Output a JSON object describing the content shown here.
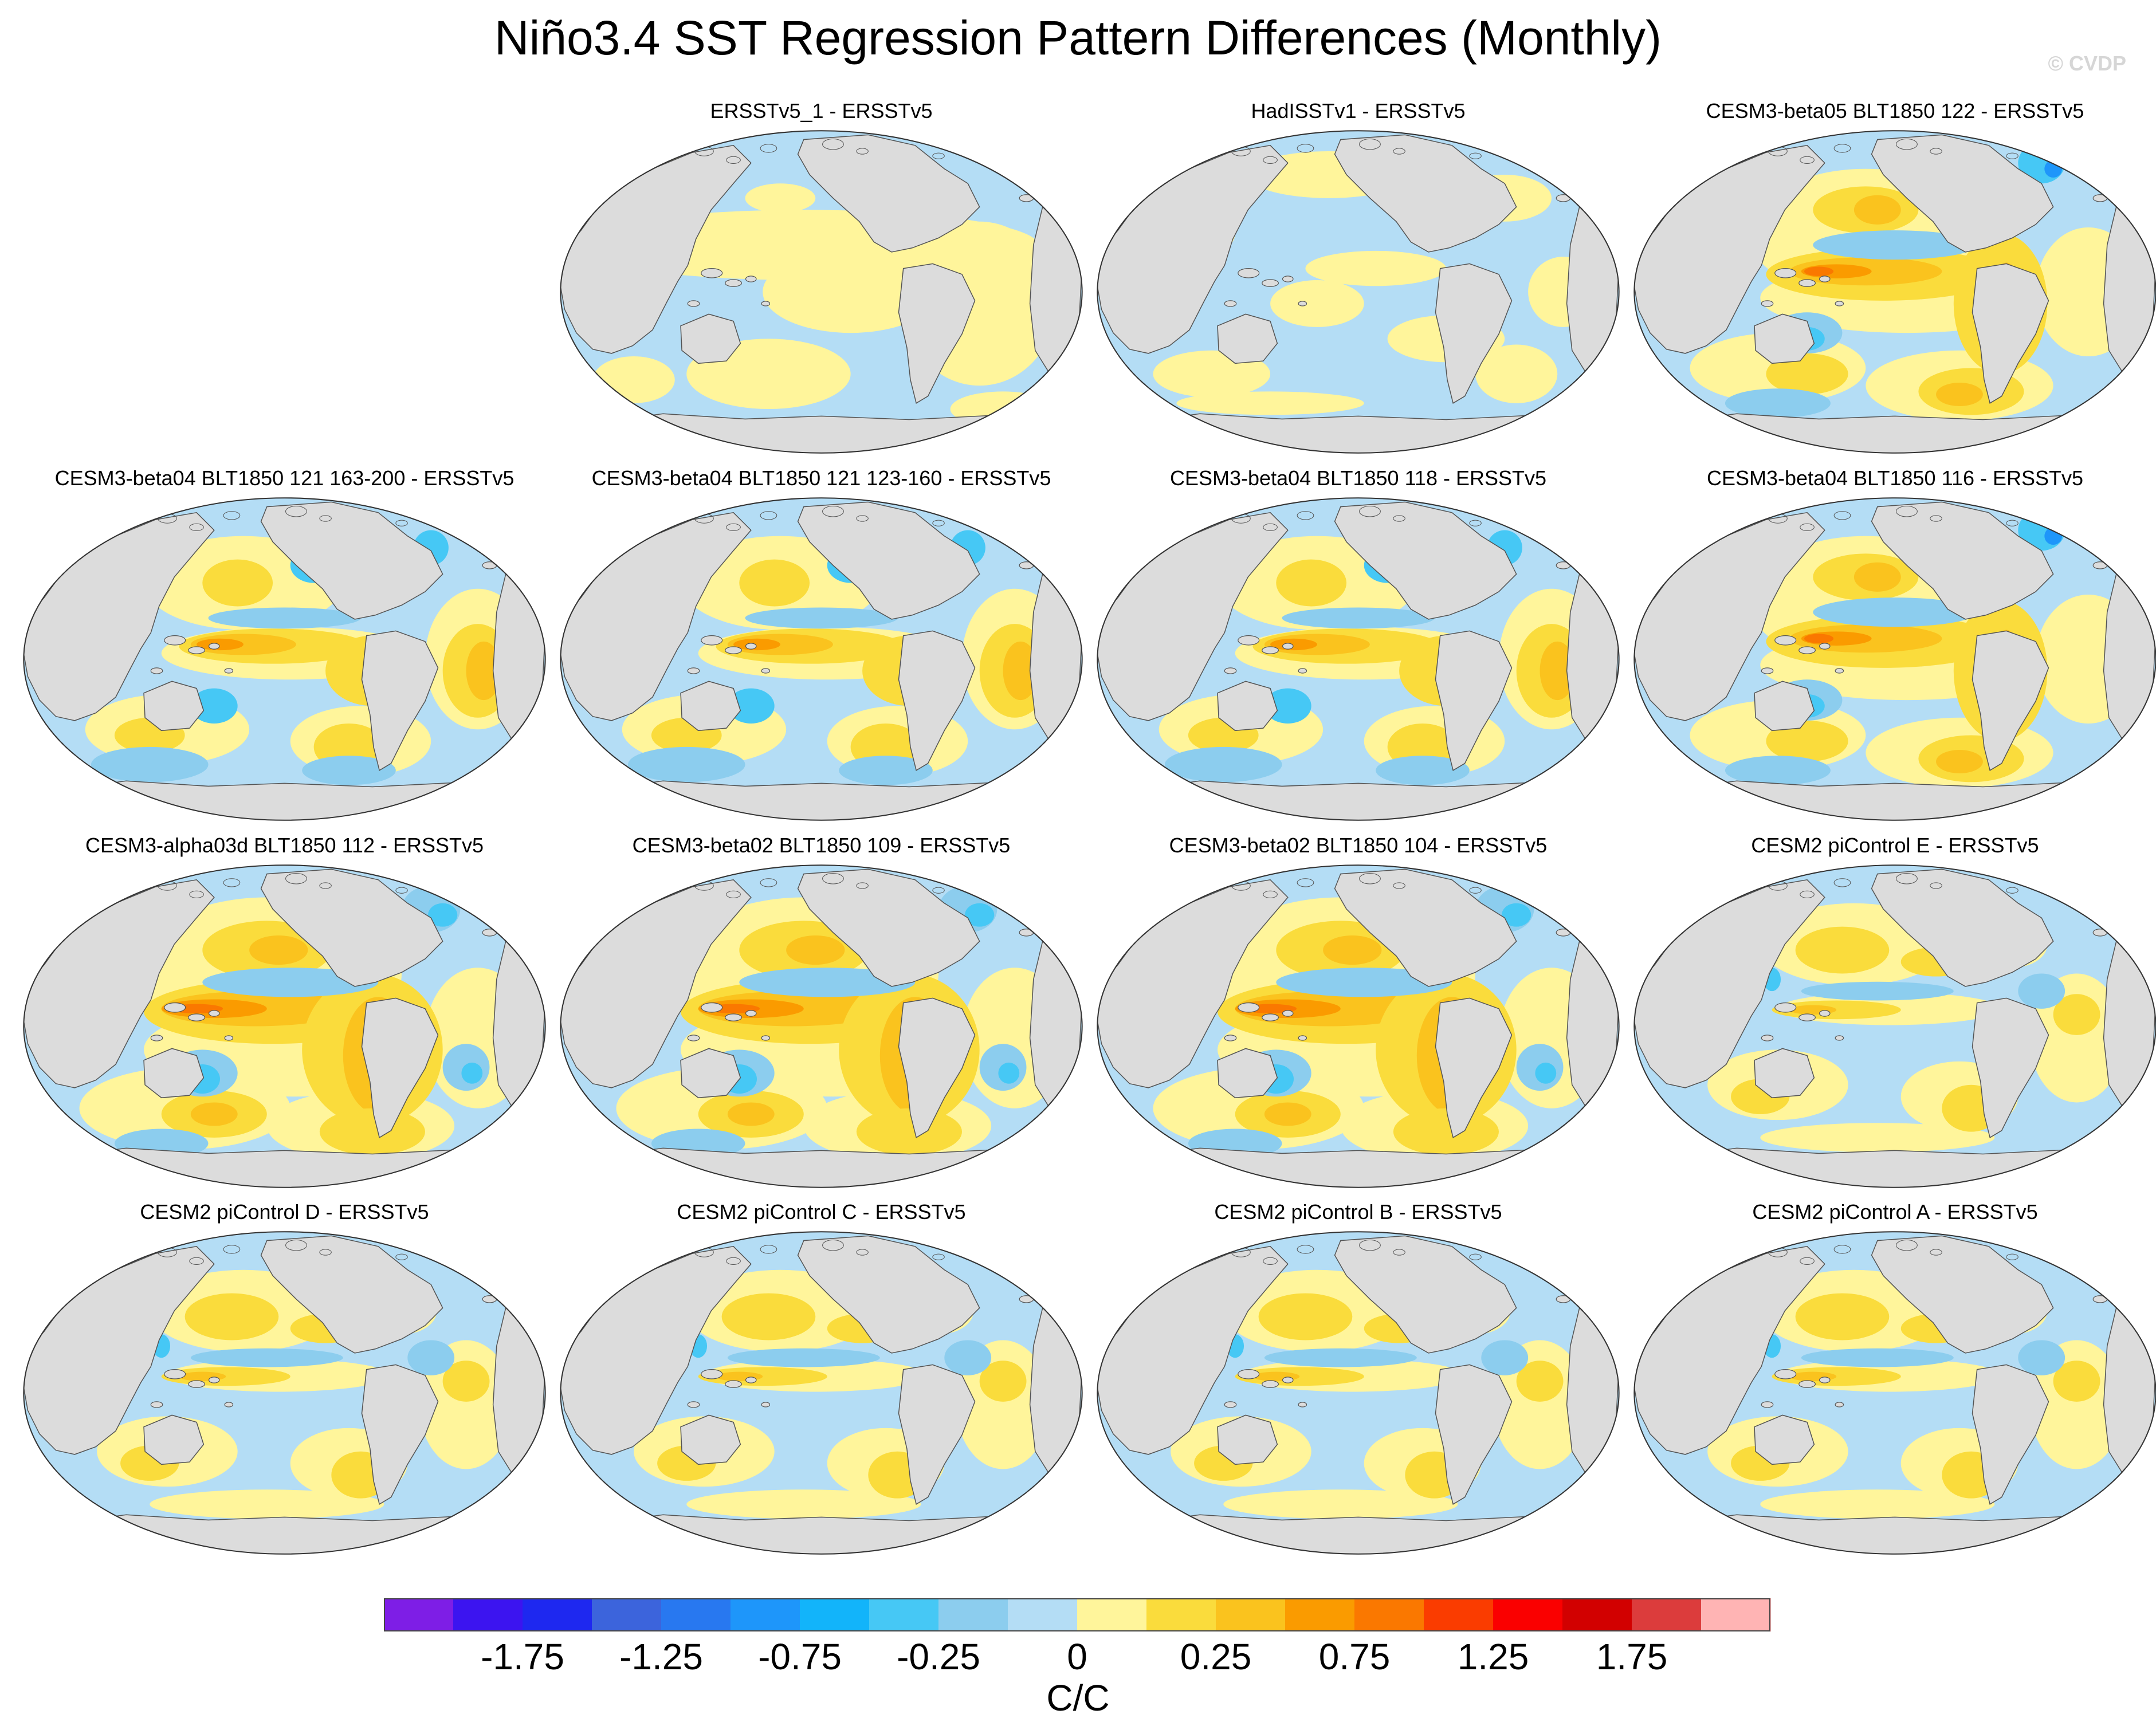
{
  "title": "Niño3.4 SST Regression Pattern Differences (Monthly)",
  "watermark": "© CVDP",
  "panels": [
    {
      "label": "ERSSTv5_1 - ERSSTv5",
      "pattern": "obs1"
    },
    {
      "label": "HadISSTv1 - ERSSTv5",
      "pattern": "obs2"
    },
    {
      "label": "CESM3-beta05 BLT1850 122 - ERSSTv5",
      "pattern": "strong"
    },
    {
      "label": "CESM3-beta04 BLT1850 121 163-200 - ERSSTv5",
      "pattern": "medium"
    },
    {
      "label": "CESM3-beta04 BLT1850 121 123-160 - ERSSTv5",
      "pattern": "medium"
    },
    {
      "label": "CESM3-beta04 BLT1850 118 - ERSSTv5",
      "pattern": "medium"
    },
    {
      "label": "CESM3-beta04 BLT1850 116 - ERSSTv5",
      "pattern": "strong"
    },
    {
      "label": "CESM3-alpha03d BLT1850 112 - ERSSTv5",
      "pattern": "strongest"
    },
    {
      "label": "CESM3-beta02 BLT1850 109 - ERSSTv5",
      "pattern": "strongest"
    },
    {
      "label": "CESM3-beta02 BLT1850 104 - ERSSTv5",
      "pattern": "strongest"
    },
    {
      "label": "CESM2 piControl E - ERSSTv5",
      "pattern": "weak"
    },
    {
      "label": "CESM2 piControl D - ERSSTv5",
      "pattern": "weak"
    },
    {
      "label": "CESM2 piControl C - ERSSTv5",
      "pattern": "weak"
    },
    {
      "label": "CESM2 piControl B - ERSSTv5",
      "pattern": "weak"
    },
    {
      "label": "CESM2 piControl A - ERSSTv5",
      "pattern": "weak"
    }
  ],
  "colorbar": {
    "colors": [
      "#7e1ee6",
      "#3c14f0",
      "#1e28f0",
      "#3c64dc",
      "#2878f0",
      "#1e96fa",
      "#12b4fa",
      "#46c8f5",
      "#8ccdee",
      "#b4ddf5",
      "#fff59b",
      "#fadc3c",
      "#fac31e",
      "#fa9b00",
      "#fa7800",
      "#fa3c00",
      "#fa0000",
      "#d20000",
      "#dc3c3c",
      "#ffb4b4"
    ],
    "ticks": [
      "-1.75",
      "-1.25",
      "-0.75",
      "-0.25",
      "0",
      "0.25",
      "0.75",
      "1.25",
      "1.75"
    ],
    "units": "C/C"
  },
  "map_colors": {
    "land": "#dcdcdc",
    "coast": "#555555"
  }
}
